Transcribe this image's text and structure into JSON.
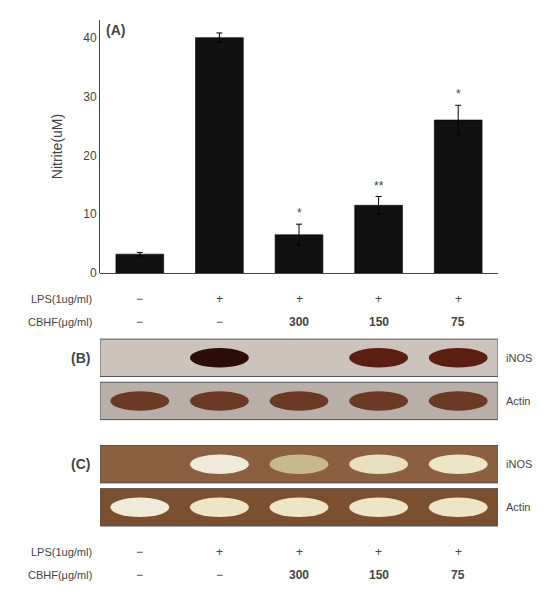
{
  "chart_data": {
    "type": "bar",
    "ylabel": "Nitrite(uM)",
    "categories": [
      null,
      null,
      null,
      null,
      null
    ],
    "values": [
      3.2,
      40.0,
      6.5,
      11.5,
      26.0
    ],
    "errors": [
      0.3,
      0.8,
      1.8,
      1.5,
      2.5
    ],
    "color": "#111111",
    "ylim": [
      0,
      43
    ],
    "yticks": [
      0,
      10,
      20,
      30,
      40
    ],
    "grid": false,
    "tick_labels": "y",
    "annotations": [
      null,
      null,
      "*",
      "**",
      "*"
    ],
    "panel_label": "(A)",
    "rows": [
      {
        "label": "LPS(1ug/ml)",
        "values": [
          "−",
          "+",
          "+",
          "+",
          "+"
        ]
      },
      {
        "label": "CBHF(μg/ml)",
        "values": [
          "−",
          "−",
          "300",
          "150",
          "75"
        ]
      }
    ],
    "blots": [
      {
        "panel_label": "(B)",
        "label": "iNOS",
        "background": "#ccc4bc",
        "bands": [
          null,
          "#2c0d05",
          null,
          "#5a1f10",
          "#5a1f10"
        ]
      },
      {
        "label": "Actin",
        "background": "#b8b0a8",
        "bands": [
          "#6b3a25",
          "#6b3a25",
          "#6b3a25",
          "#6b3a25",
          "#6b3a25"
        ]
      },
      {
        "panel_label": "(C)",
        "label": "iNOS",
        "background": "#8B6040",
        "bands": [
          null,
          "#f0ead8",
          "#c8b890",
          "#e8dfc0",
          "#ede5c8"
        ]
      },
      {
        "label": "Actin",
        "background": "#7a5030",
        "bands": [
          "#f0ead8",
          "#ede5c5",
          "#ede5c5",
          "#ede5c5",
          "#ede5c5"
        ]
      }
    ]
  }
}
